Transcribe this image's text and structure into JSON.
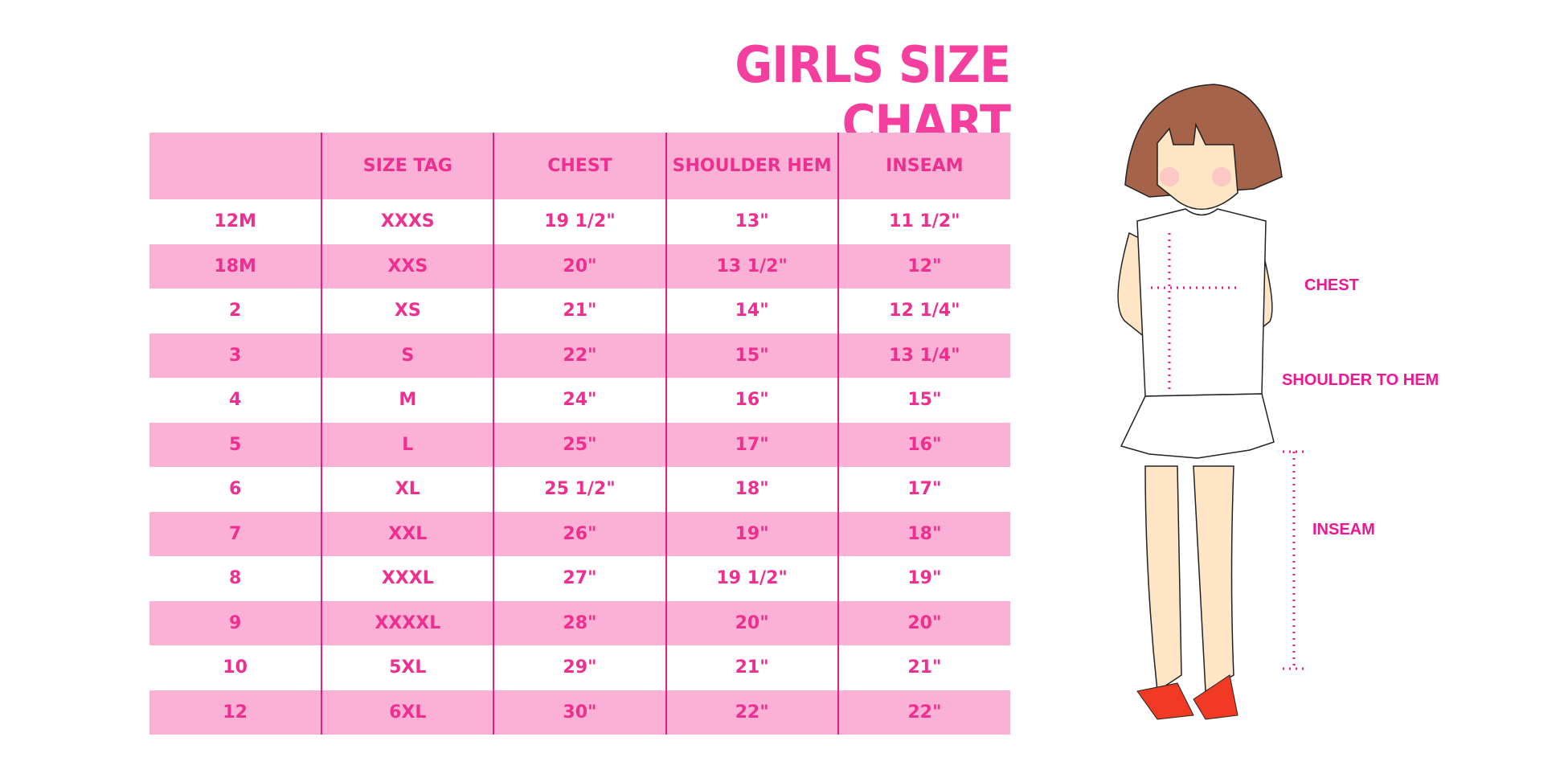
{
  "title": "GIRLS SIZE CHART",
  "table": {
    "headers": [
      "",
      "SIZE TAG",
      "CHEST",
      "SHOULDER HEM",
      "INSEAM"
    ],
    "rows": [
      [
        "12M",
        "XXXS",
        "19 1/2\"",
        "13\"",
        "11 1/2\""
      ],
      [
        "18M",
        "XXS",
        "20\"",
        "13 1/2\"",
        "12\""
      ],
      [
        "2",
        "XS",
        "21\"",
        "14\"",
        "12 1/4\""
      ],
      [
        "3",
        "S",
        "22\"",
        "15\"",
        "13 1/4\""
      ],
      [
        "4",
        "M",
        "24\"",
        "16\"",
        "15\""
      ],
      [
        "5",
        "L",
        "25\"",
        "17\"",
        "16\""
      ],
      [
        "6",
        "XL",
        "25 1/2\"",
        "18\"",
        "17\""
      ],
      [
        "7",
        "XXL",
        "26\"",
        "19\"",
        "18\""
      ],
      [
        "8",
        "XXXL",
        "27\"",
        "19 1/2\"",
        "19\""
      ],
      [
        "9",
        "XXXXL",
        "28\"",
        "20\"",
        "20\""
      ],
      [
        "10",
        "5XL",
        "29\"",
        "21\"",
        "21\""
      ],
      [
        "12",
        "6XL",
        "30\"",
        "22\"",
        "22\""
      ]
    ]
  },
  "figure": {
    "labels": {
      "chest": "CHEST",
      "shoulder_to_hem": "SHOULDER TO HEM",
      "inseam": "INSEAM"
    }
  },
  "colors": {
    "accent": "#f43f9e",
    "row_pink": "#fbb0d5",
    "divider": "#e0218a"
  }
}
